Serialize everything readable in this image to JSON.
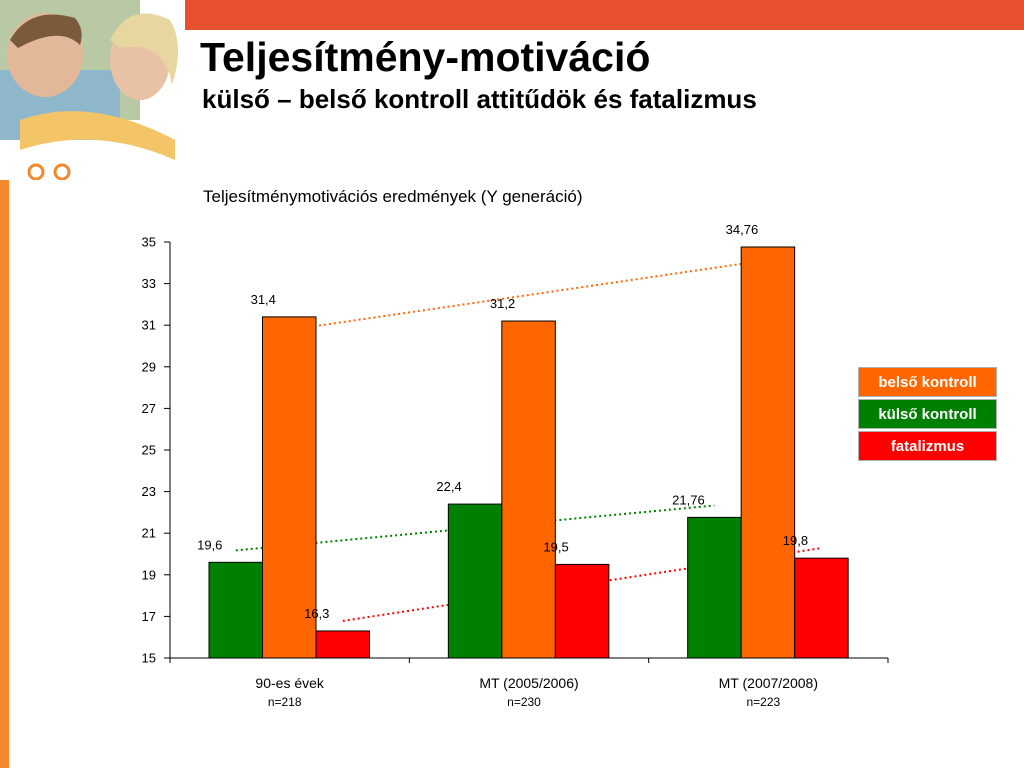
{
  "header": {
    "title": "Teljesítmény-motiváció",
    "subtitle": "külső – belső kontroll attitűdök és fatalizmus"
  },
  "colors": {
    "top_bar": "#e8512f",
    "left_stripe": "#f5882a",
    "belso": "#ff6600",
    "kulso": "#008000",
    "fatalizmus": "#ff0000"
  },
  "chart_data": {
    "type": "bar",
    "title": "Teljesítménymotivációs eredmények (Y generáció)",
    "categories": [
      "90-es évek",
      "MT (2005/2006)",
      "MT (2007/2008)"
    ],
    "sample_sizes": [
      "n=218",
      "n=230",
      "n=223"
    ],
    "ylim": [
      15,
      35
    ],
    "yticks": [
      "15",
      "17",
      "19",
      "21",
      "23",
      "25",
      "27",
      "29",
      "31",
      "33",
      "35"
    ],
    "grid": false,
    "legend_position": "right",
    "series": [
      {
        "name": "külső kontroll",
        "color": "#008000",
        "values": [
          19.6,
          22.4,
          21.76
        ],
        "labels": [
          "19,6",
          "22,4",
          "21,76"
        ]
      },
      {
        "name": "belső kontroll",
        "color": "#ff6600",
        "values": [
          31.4,
          31.2,
          34.76
        ],
        "labels": [
          "31,4",
          "31,2",
          "34,76"
        ]
      },
      {
        "name": "fatalizmus",
        "color": "#ff0000",
        "values": [
          16.3,
          19.5,
          19.8
        ],
        "labels": [
          "16,3",
          "19,5",
          "19,8"
        ]
      }
    ],
    "legend": [
      "belső kontroll",
      "külső kontroll",
      "fatalizmus"
    ],
    "trendlines": "dotted linear trend per series"
  }
}
